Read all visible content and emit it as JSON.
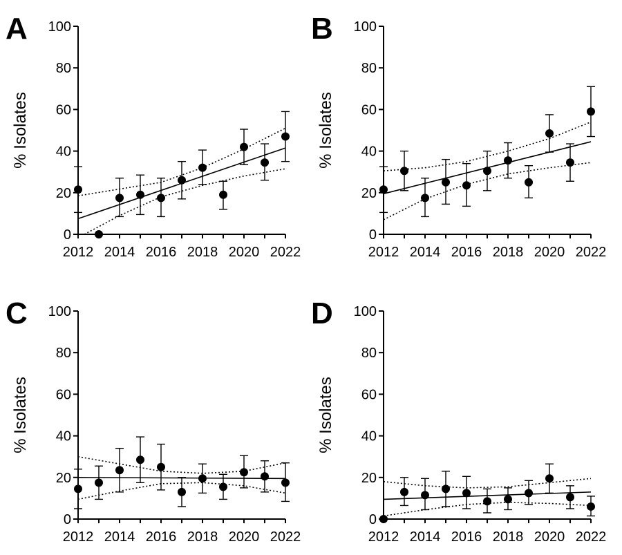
{
  "chart_data": [
    {
      "panel": "A",
      "type": "scatter",
      "ylabel": "% Isolates",
      "xlim": [
        2012,
        2022
      ],
      "ylim": [
        0,
        100
      ],
      "xticks": [
        2012,
        2014,
        2016,
        2018,
        2020,
        2022
      ],
      "yticks": [
        0,
        20,
        40,
        60,
        80,
        100
      ],
      "points": [
        {
          "x": 2012,
          "y": 21.5,
          "lo": 10.5,
          "hi": 32.5
        },
        {
          "x": 2013,
          "y": 0,
          "lo": 0,
          "hi": 0
        },
        {
          "x": 2014,
          "y": 17.5,
          "lo": 8.5,
          "hi": 27
        },
        {
          "x": 2015,
          "y": 19,
          "lo": 9.5,
          "hi": 28.5
        },
        {
          "x": 2016,
          "y": 17.5,
          "lo": 8.5,
          "hi": 27
        },
        {
          "x": 2017,
          "y": 26,
          "lo": 17,
          "hi": 35
        },
        {
          "x": 2018,
          "y": 32,
          "lo": 24,
          "hi": 40.5
        },
        {
          "x": 2019,
          "y": 19,
          "lo": 12,
          "hi": 25.5
        },
        {
          "x": 2020,
          "y": 42,
          "lo": 33.5,
          "hi": 50.5
        },
        {
          "x": 2021,
          "y": 34.5,
          "lo": 26,
          "hi": 43.5
        },
        {
          "x": 2022,
          "y": 47,
          "lo": 35,
          "hi": 59
        }
      ],
      "trend": {
        "y_start": 7.5,
        "y_end": 41.5
      },
      "ci_upper": [
        [
          2012,
          18.5
        ],
        [
          2016,
          25
        ],
        [
          2018,
          32
        ],
        [
          2020,
          41
        ],
        [
          2022,
          51
        ]
      ],
      "ci_lower": [
        [
          2012.3,
          0
        ],
        [
          2014,
          9
        ],
        [
          2016,
          18
        ],
        [
          2018,
          23.5
        ],
        [
          2020,
          28
        ],
        [
          2022,
          31.5
        ]
      ]
    },
    {
      "panel": "B",
      "type": "scatter",
      "ylabel": "% Isolates",
      "xlim": [
        2012,
        2022
      ],
      "ylim": [
        0,
        100
      ],
      "xticks": [
        2012,
        2014,
        2016,
        2018,
        2020,
        2022
      ],
      "yticks": [
        0,
        20,
        40,
        60,
        80,
        100
      ],
      "points": [
        {
          "x": 2012,
          "y": 21.5,
          "lo": 10.5,
          "hi": 32.5
        },
        {
          "x": 2013,
          "y": 30.5,
          "lo": 21,
          "hi": 40
        },
        {
          "x": 2014,
          "y": 17.5,
          "lo": 8.5,
          "hi": 27
        },
        {
          "x": 2015,
          "y": 25,
          "lo": 14.5,
          "hi": 36
        },
        {
          "x": 2016,
          "y": 23.5,
          "lo": 13.5,
          "hi": 34
        },
        {
          "x": 2017,
          "y": 30.5,
          "lo": 21,
          "hi": 40
        },
        {
          "x": 2018,
          "y": 35.5,
          "lo": 27,
          "hi": 44
        },
        {
          "x": 2019,
          "y": 25,
          "lo": 17.5,
          "hi": 33
        },
        {
          "x": 2020,
          "y": 48.5,
          "lo": 39.5,
          "hi": 57.5
        },
        {
          "x": 2021,
          "y": 34.5,
          "lo": 25.5,
          "hi": 43.5
        },
        {
          "x": 2022,
          "y": 59,
          "lo": 47,
          "hi": 71
        }
      ],
      "trend": {
        "y_start": 19.5,
        "y_end": 44.5
      },
      "ci_upper": [
        [
          2012,
          30.5
        ],
        [
          2014,
          32
        ],
        [
          2016,
          35
        ],
        [
          2018,
          40
        ],
        [
          2020,
          46
        ],
        [
          2022,
          54
        ]
      ],
      "ci_lower": [
        [
          2012,
          7
        ],
        [
          2014,
          17
        ],
        [
          2016,
          24
        ],
        [
          2018,
          29
        ],
        [
          2020,
          32
        ],
        [
          2022,
          34.5
        ]
      ]
    },
    {
      "panel": "C",
      "type": "scatter",
      "ylabel": "% Isolates",
      "xlim": [
        2012,
        2022
      ],
      "ylim": [
        0,
        100
      ],
      "xticks": [
        2012,
        2014,
        2016,
        2018,
        2020,
        2022
      ],
      "yticks": [
        0,
        20,
        40,
        60,
        80,
        100
      ],
      "points": [
        {
          "x": 2012,
          "y": 14.5,
          "lo": 5,
          "hi": 24
        },
        {
          "x": 2013,
          "y": 17.5,
          "lo": 9.5,
          "hi": 25.5
        },
        {
          "x": 2014,
          "y": 23.5,
          "lo": 13,
          "hi": 34
        },
        {
          "x": 2015,
          "y": 28.5,
          "lo": 17.5,
          "hi": 39.5
        },
        {
          "x": 2016,
          "y": 25,
          "lo": 14,
          "hi": 36
        },
        {
          "x": 2017,
          "y": 13,
          "lo": 6,
          "hi": 20
        },
        {
          "x": 2018,
          "y": 19.5,
          "lo": 12.5,
          "hi": 26.5
        },
        {
          "x": 2019,
          "y": 15.5,
          "lo": 9.5,
          "hi": 21.5
        },
        {
          "x": 2020,
          "y": 22.5,
          "lo": 15,
          "hi": 30.5
        },
        {
          "x": 2021,
          "y": 20.5,
          "lo": 13,
          "hi": 28
        },
        {
          "x": 2022,
          "y": 17.5,
          "lo": 8.5,
          "hi": 27
        }
      ],
      "trend": {
        "y_start": 20,
        "y_end": 19.5
      },
      "ci_upper": [
        [
          2012,
          30
        ],
        [
          2014,
          26.5
        ],
        [
          2016,
          23
        ],
        [
          2018,
          22
        ],
        [
          2020,
          23
        ],
        [
          2022,
          27
        ]
      ],
      "ci_lower": [
        [
          2012,
          9.5
        ],
        [
          2014,
          13.5
        ],
        [
          2016,
          17
        ],
        [
          2018,
          17.5
        ],
        [
          2020,
          16
        ],
        [
          2022,
          12.5
        ]
      ]
    },
    {
      "panel": "D",
      "type": "scatter",
      "ylabel": "% Isolates",
      "xlim": [
        2012,
        2022
      ],
      "ylim": [
        0,
        100
      ],
      "xticks": [
        2012,
        2014,
        2016,
        2018,
        2020,
        2022
      ],
      "yticks": [
        0,
        20,
        40,
        60,
        80,
        100
      ],
      "points": [
        {
          "x": 2012,
          "y": 0,
          "lo": 0,
          "hi": 0
        },
        {
          "x": 2013,
          "y": 13,
          "lo": 6.5,
          "hi": 20
        },
        {
          "x": 2014,
          "y": 11.5,
          "lo": 4.5,
          "hi": 19.5
        },
        {
          "x": 2015,
          "y": 14.5,
          "lo": 6,
          "hi": 23
        },
        {
          "x": 2016,
          "y": 12.5,
          "lo": 5,
          "hi": 20.5
        },
        {
          "x": 2017,
          "y": 8.5,
          "lo": 3,
          "hi": 14.5
        },
        {
          "x": 2018,
          "y": 9.5,
          "lo": 4.5,
          "hi": 15
        },
        {
          "x": 2019,
          "y": 12.5,
          "lo": 7,
          "hi": 18.5
        },
        {
          "x": 2020,
          "y": 19.5,
          "lo": 12.5,
          "hi": 26.5
        },
        {
          "x": 2021,
          "y": 10.5,
          "lo": 5,
          "hi": 16
        },
        {
          "x": 2022,
          "y": 6,
          "lo": 1.5,
          "hi": 11
        }
      ],
      "trend": {
        "y_start": 9.5,
        "y_end": 13
      },
      "ci_upper": [
        [
          2012,
          18
        ],
        [
          2014,
          16
        ],
        [
          2016,
          15
        ],
        [
          2018,
          15.5
        ],
        [
          2020,
          17.5
        ],
        [
          2022,
          19.5
        ]
      ],
      "ci_lower": [
        [
          2012,
          1.5
        ],
        [
          2014,
          4.5
        ],
        [
          2016,
          7
        ],
        [
          2018,
          8
        ],
        [
          2020,
          7.5
        ],
        [
          2022,
          6.5
        ]
      ]
    }
  ]
}
